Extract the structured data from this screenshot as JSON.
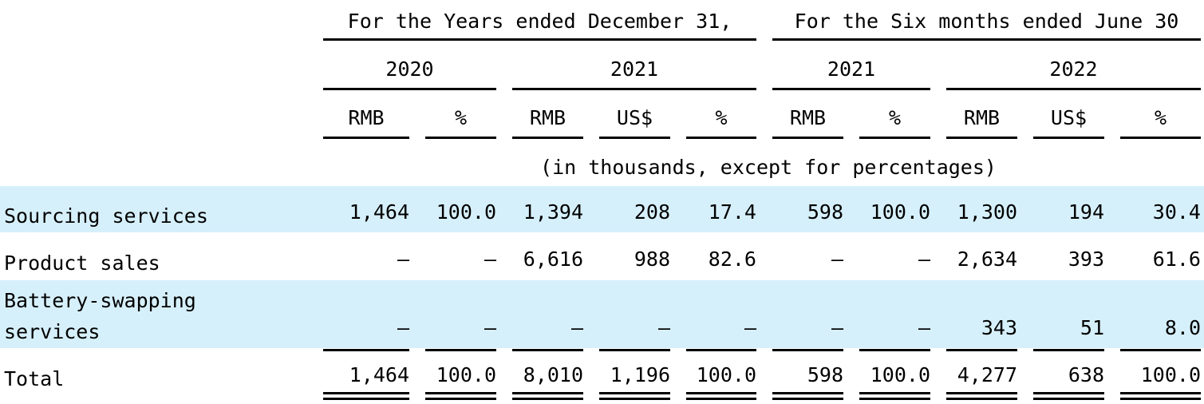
{
  "header": {
    "groups": [
      "For the Years ended December 31,",
      "For the Six months ended June 30"
    ],
    "years": [
      "2020",
      "2021",
      "2021",
      "2022"
    ],
    "units": [
      "RMB",
      "%",
      "RMB",
      "US$",
      "%",
      "RMB",
      "%",
      "RMB",
      "US$",
      "%"
    ]
  },
  "note": "(in thousands, except for percentages)",
  "rows": [
    {
      "label": "Sourcing services",
      "cells": [
        "1,464",
        "100.0",
        "1,394",
        "208",
        "17.4",
        "598",
        "100.0",
        "1,300",
        "194",
        "30.4"
      ]
    },
    {
      "label": "Product sales",
      "cells": [
        "—",
        "—",
        "6,616",
        "988",
        "82.6",
        "—",
        "—",
        "2,634",
        "393",
        "61.6"
      ]
    },
    {
      "label": "Battery-swapping services",
      "cells": [
        "—",
        "—",
        "—",
        "—",
        "—",
        "—",
        "—",
        "343",
        "51",
        "8.0"
      ]
    },
    {
      "label": "Total",
      "cells": [
        "1,464",
        "100.0",
        "8,010",
        "1,196",
        "100.0",
        "598",
        "100.0",
        "4,277",
        "638",
        "100.0"
      ]
    }
  ]
}
